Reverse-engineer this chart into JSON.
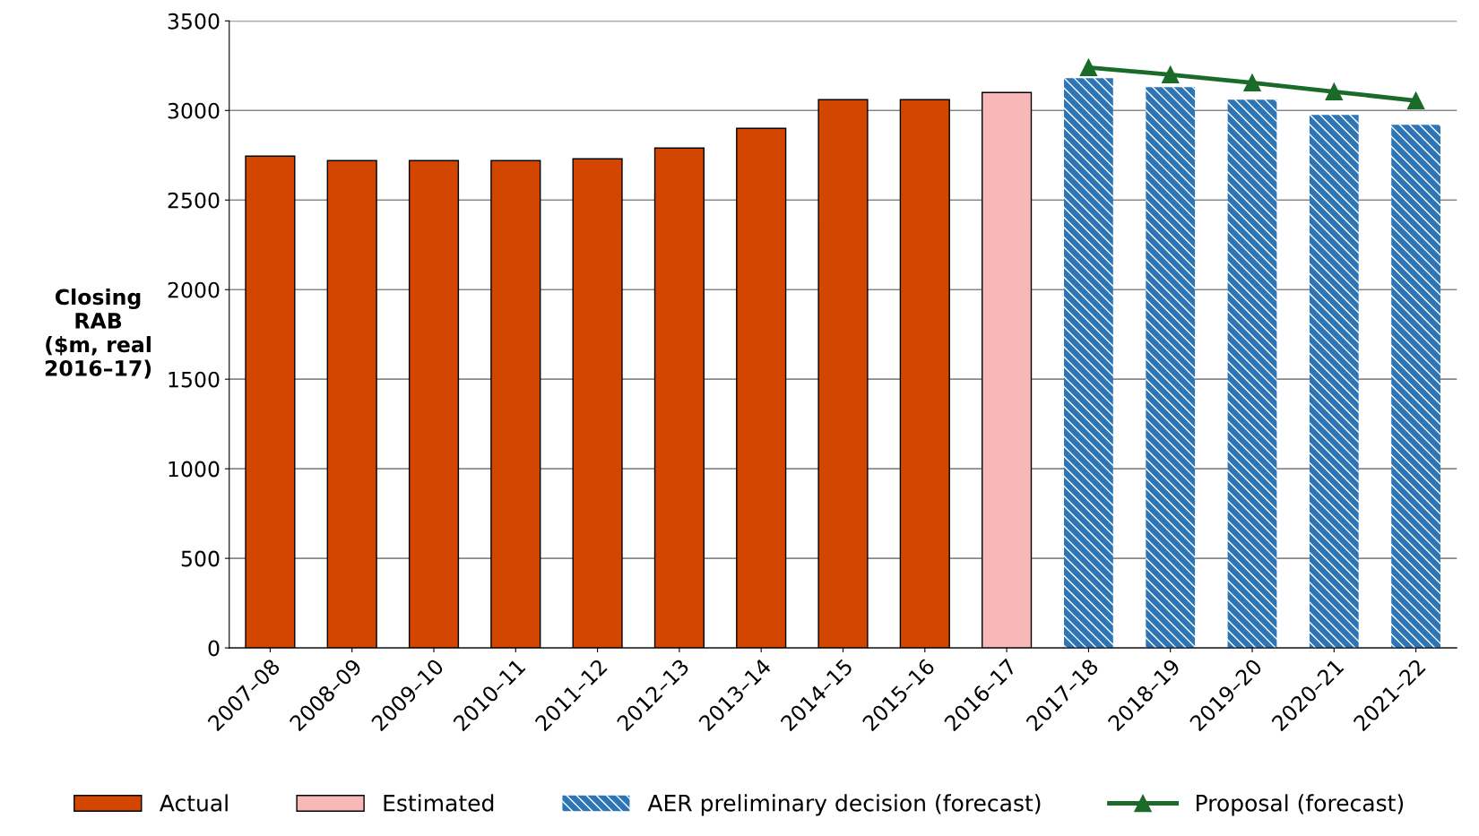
{
  "chart_data": {
    "type": "bar",
    "ylabel": "Closing\nRAB\n($m, real\n2016–17)",
    "categories": [
      "2007–08",
      "2008–09",
      "2009–10",
      "2010–11",
      "2011–12",
      "2012–13",
      "2013–14",
      "2014–15",
      "2015–16",
      "2016–17",
      "2017–18",
      "2018–19",
      "2019–20",
      "2020–21",
      "2021–22"
    ],
    "series": [
      {
        "name": "Actual",
        "color": "#d24600",
        "values": [
          2745,
          2720,
          2720,
          2720,
          2730,
          2790,
          2900,
          3060,
          3060,
          null,
          null,
          null,
          null,
          null,
          null
        ]
      },
      {
        "name": "Estimated",
        "color": "#f9b8b8",
        "values": [
          null,
          null,
          null,
          null,
          null,
          null,
          null,
          null,
          null,
          3100,
          null,
          null,
          null,
          null,
          null
        ]
      },
      {
        "name": "AER preliminary decision (forecast)",
        "color": "#2e75b6",
        "values": [
          null,
          null,
          null,
          null,
          null,
          null,
          null,
          null,
          null,
          null,
          3180,
          3130,
          3060,
          2975,
          2920
        ]
      },
      {
        "name": "Proposal (forecast)",
        "type": "line",
        "color": "#1a6b2a",
        "marker": "triangle",
        "values": [
          null,
          null,
          null,
          null,
          null,
          null,
          null,
          null,
          null,
          null,
          3240,
          3200,
          3155,
          3105,
          3055
        ]
      }
    ],
    "ylim": [
      0,
      3500
    ],
    "yticks": [
      0,
      500,
      1000,
      1500,
      2000,
      2500,
      3000,
      3500
    ],
    "grid": "y",
    "legend": "bottom"
  }
}
